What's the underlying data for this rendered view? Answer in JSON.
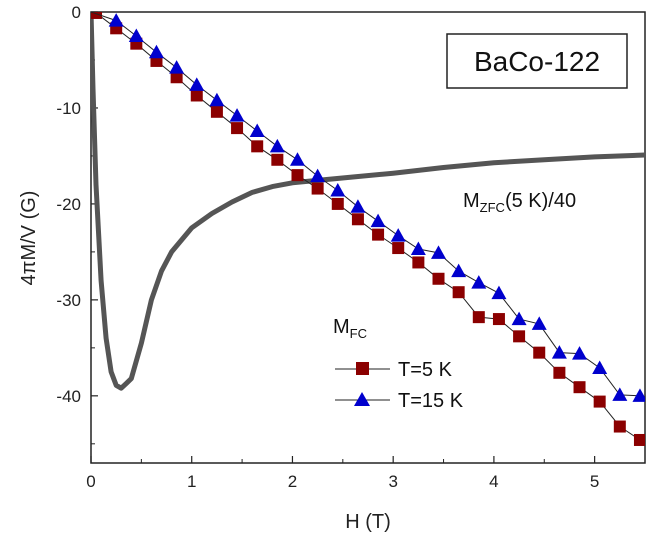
{
  "chart_data": {
    "type": "scatter",
    "xlabel": "H (T)",
    "ylabel": "4πM/V (G)",
    "xlim": [
      0,
      5.5
    ],
    "ylim": [
      -47,
      0
    ],
    "x_ticks": [
      0,
      1,
      2,
      3,
      4,
      5
    ],
    "y_ticks": [
      0,
      -10,
      -20,
      -30,
      -40
    ],
    "sample_label": "BaCo-122",
    "zfc_annotation": {
      "main": "M",
      "sub": "ZFC",
      "suffix": "(5 K)/40"
    },
    "legend_title": {
      "main": "M",
      "sub": "FC"
    },
    "grid": false,
    "series": [
      {
        "name": "T=5 K",
        "marker": "square",
        "color": "#8b0000",
        "x": [
          0.05,
          0.25,
          0.45,
          0.65,
          0.85,
          1.05,
          1.25,
          1.45,
          1.65,
          1.85,
          2.05,
          2.25,
          2.45,
          2.65,
          2.85,
          3.05,
          3.25,
          3.45,
          3.65,
          3.85,
          4.05,
          4.25,
          4.45,
          4.65,
          4.85,
          5.05,
          5.25,
          5.45
        ],
        "y": [
          -0.1,
          -1.7,
          -3.3,
          -5.1,
          -6.8,
          -8.7,
          -10.4,
          -12.1,
          -14.0,
          -15.4,
          -17.0,
          -18.4,
          -20.0,
          -21.6,
          -23.2,
          -24.6,
          -26.1,
          -27.8,
          -29.2,
          -31.8,
          -32.0,
          -33.8,
          -35.5,
          -37.6,
          -39.1,
          -40.6,
          -43.2,
          -44.6
        ]
      },
      {
        "name": "T=15 K",
        "marker": "triangle",
        "color": "#0000cd",
        "x": [
          0.25,
          0.45,
          0.65,
          0.85,
          1.05,
          1.25,
          1.45,
          1.65,
          1.85,
          2.05,
          2.25,
          2.45,
          2.65,
          2.85,
          3.05,
          3.25,
          3.45,
          3.65,
          3.85,
          4.05,
          4.25,
          4.45,
          4.65,
          4.85,
          5.05,
          5.25,
          5.45
        ],
        "y": [
          -0.9,
          -2.5,
          -4.2,
          -5.8,
          -7.6,
          -9.2,
          -10.8,
          -12.4,
          -14.0,
          -15.4,
          -17.1,
          -18.6,
          -20.3,
          -21.8,
          -23.3,
          -24.7,
          -25.1,
          -27.0,
          -28.2,
          -29.3,
          -32.0,
          -32.5,
          -35.5,
          -35.6,
          -37.1,
          -39.9,
          -40.0
        ]
      },
      {
        "name": "M_ZFC(5 K)/40",
        "marker": "none",
        "color": "#555555",
        "x": [
          0.0,
          0.02,
          0.05,
          0.1,
          0.15,
          0.2,
          0.25,
          0.3,
          0.35,
          0.4,
          0.5,
          0.6,
          0.7,
          0.8,
          1.0,
          1.2,
          1.4,
          1.6,
          1.8,
          2.0,
          2.3,
          2.6,
          3.0,
          3.5,
          4.0,
          4.5,
          5.0,
          5.5
        ],
        "y": [
          0.0,
          -8.0,
          -18.0,
          -28.0,
          -34.0,
          -37.5,
          -38.9,
          -39.2,
          -38.7,
          -38.2,
          -34.5,
          -30.0,
          -27.0,
          -25.0,
          -22.5,
          -21.0,
          -19.8,
          -18.8,
          -18.2,
          -17.8,
          -17.5,
          -17.2,
          -16.8,
          -16.2,
          -15.7,
          -15.4,
          -15.1,
          -14.9
        ]
      }
    ]
  }
}
